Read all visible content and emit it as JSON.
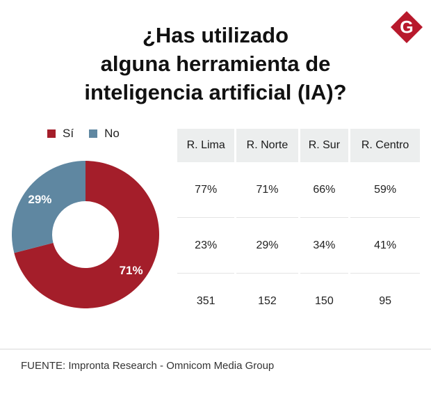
{
  "title_lines": [
    "¿Has utilizado",
    "alguna herramienta de",
    "inteligencia artificial (IA)?"
  ],
  "logo": {
    "letter": "G",
    "icon": "brand-logo-icon",
    "color": "#b8192c"
  },
  "colors": {
    "si": "#a41e2a",
    "no": "#5f87a1"
  },
  "legend": [
    {
      "label": "Sí",
      "color": "#a41e2a"
    },
    {
      "label": "No",
      "color": "#5f87a1"
    }
  ],
  "chart_data": [
    {
      "type": "pie",
      "categories": [
        "Sí",
        "No"
      ],
      "values": [
        71,
        29
      ],
      "labels": [
        "71%",
        "29%"
      ],
      "colors": [
        "#a41e2a",
        "#5f87a1"
      ],
      "title": "",
      "legend": "top-left"
    },
    {
      "type": "table",
      "columns": [
        "R. Lima",
        "R. Norte",
        "R. Sur",
        "R. Centro"
      ],
      "rows": [
        [
          "77%",
          "71%",
          "66%",
          "59%"
        ],
        [
          "23%",
          "29%",
          "34%",
          "41%"
        ],
        [
          "351",
          "152",
          "150",
          "95"
        ]
      ]
    }
  ],
  "source": "FUENTE: Impronta Research - Omnicom Media Group"
}
